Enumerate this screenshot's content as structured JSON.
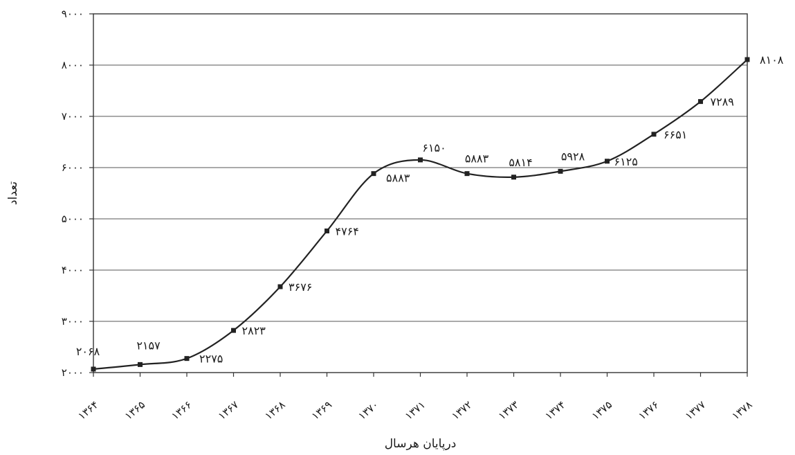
{
  "chart_data": {
    "type": "line",
    "title": "",
    "xlabel": "درپایان هرسال",
    "ylabel": "تعداد",
    "categories": [
      "۱۳۶۴",
      "۱۳۶۵",
      "۱۳۶۶",
      "۱۳۶۷",
      "۱۳۶۸",
      "۱۳۶۹",
      "۱۳۷۰",
      "۱۳۷۱",
      "۱۳۷۲",
      "۱۳۷۳",
      "۱۳۷۴",
      "۱۳۷۵",
      "۱۳۷۶",
      "۱۳۷۷",
      "۱۳۷۸"
    ],
    "series": [
      {
        "values": [
          2068,
          2157,
          2275,
          2823,
          3676,
          4764,
          5883,
          6150,
          5883,
          5814,
          5928,
          6125,
          6651,
          7289,
          8108
        ],
        "labels": [
          "۲۰۶۸",
          "۲۱۵۷",
          "۲۲۷۵",
          "۲۸۲۳",
          "۳۶۷۶",
          "۴۷۶۴",
          "۵۸۸۳",
          "۶۱۵۰",
          "۵۸۸۳",
          "۵۸۱۴",
          "۵۹۲۸",
          "۶۱۲۵",
          "۶۶۵۱",
          "۷۲۸۹",
          "۸۱۰۸"
        ]
      }
    ],
    "yticks": [
      2000,
      3000,
      4000,
      5000,
      6000,
      7000,
      8000,
      9000
    ],
    "ytick_labels": [
      "۲۰۰۰",
      "۳۰۰۰",
      "۴۰۰۰",
      "۵۰۰۰",
      "۶۰۰۰",
      "۷۰۰۰",
      "۸۰۰۰",
      "۹۰۰۰"
    ],
    "ylim": [
      2000,
      9000
    ],
    "grid": true,
    "legend": "none",
    "colors": {
      "line": "#222222",
      "grid": "#555555"
    }
  }
}
